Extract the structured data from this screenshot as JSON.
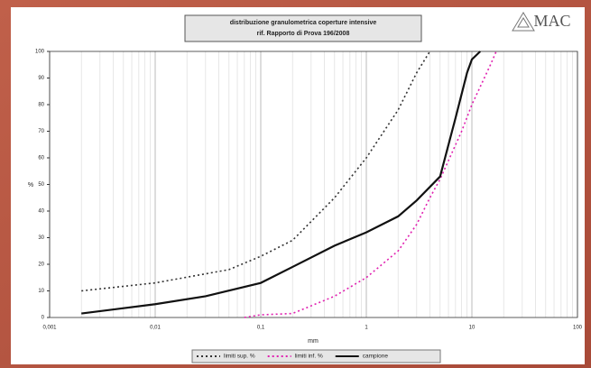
{
  "chart_data": {
    "type": "line",
    "title": "distribuzione granulometrica coperture intensive",
    "subtitle": "rif. Rapporto di Prova 196/2008",
    "logo": "MAC",
    "x_label": "mm",
    "y_label": "%",
    "log_x": true,
    "grid": "x",
    "minor_grid": true,
    "legend": "bottom",
    "xlim": [
      0.001,
      100
    ],
    "xticks": [
      {
        "value": 0.001,
        "label": "0,001"
      },
      {
        "value": 0.01,
        "label": "0,01"
      },
      {
        "value": 0.1,
        "label": "0,1"
      },
      1,
      10,
      100
    ],
    "ylim": [
      0,
      100
    ],
    "yticks": [
      0,
      10,
      20,
      30,
      40,
      50,
      60,
      70,
      80,
      90,
      100
    ],
    "series": [
      {
        "name": "limiti sup. %",
        "color": "#333333",
        "style": "dotted",
        "x": [
          0.002,
          0.01,
          0.05,
          0.1,
          0.2,
          0.5,
          1,
          2,
          3,
          4
        ],
        "values": [
          10,
          13,
          18,
          23,
          29,
          45,
          60,
          78,
          92,
          100
        ]
      },
      {
        "name": "limiti inf. %",
        "color": "#e020b0",
        "style": "dotted",
        "x": [
          0.07,
          0.1,
          0.2,
          0.5,
          1,
          2,
          3,
          4,
          5,
          8,
          10,
          15,
          17
        ],
        "values": [
          0,
          1,
          1.5,
          8,
          15,
          25,
          35,
          45,
          52,
          70,
          80,
          95,
          100
        ]
      },
      {
        "name": "campione",
        "color": "#111111",
        "style": "solid",
        "x": [
          0.002,
          0.01,
          0.03,
          0.1,
          0.2,
          0.5,
          1,
          2,
          3,
          5,
          7,
          9,
          10,
          12
        ],
        "values": [
          1.5,
          5,
          8,
          13,
          19,
          27,
          32,
          38,
          44,
          53,
          75,
          92,
          97,
          100
        ]
      }
    ]
  }
}
